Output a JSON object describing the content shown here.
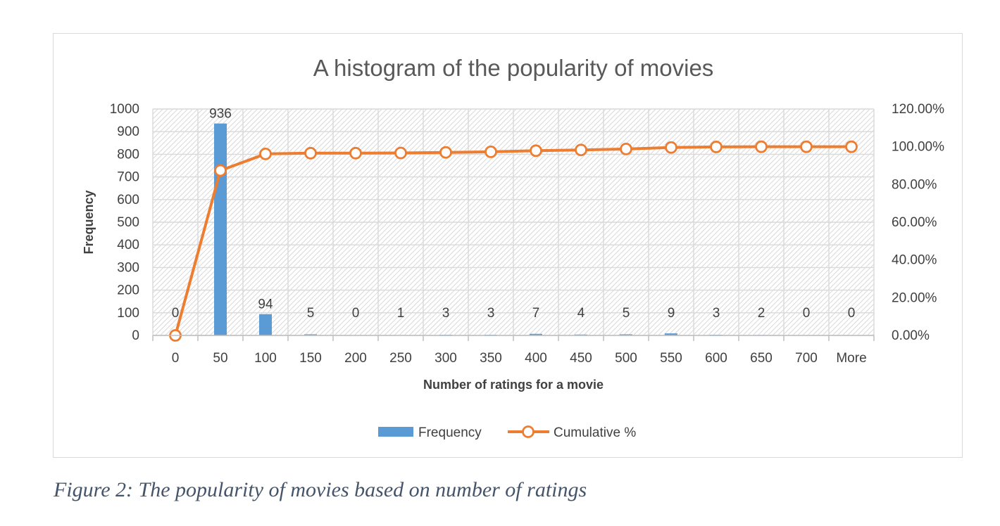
{
  "caption": "Figure 2: The popularity of movies based on number of ratings",
  "chart_data": {
    "type": "bar",
    "title": "A histogram of the popularity of movies",
    "xlabel": "Number of ratings for a movie",
    "ylabel": "Frequency",
    "categories": [
      "0",
      "50",
      "100",
      "150",
      "200",
      "250",
      "300",
      "350",
      "400",
      "450",
      "500",
      "550",
      "600",
      "650",
      "700",
      "More"
    ],
    "series": [
      {
        "name": "Frequency",
        "type": "bar",
        "axis": "left",
        "values": [
          0,
          936,
          94,
          5,
          0,
          1,
          3,
          3,
          7,
          4,
          5,
          9,
          3,
          2,
          0,
          0
        ],
        "data_labels": [
          "0",
          "936",
          "94",
          "5",
          "0",
          "1",
          "3",
          "3",
          "7",
          "4",
          "5",
          "9",
          "3",
          "2",
          "0",
          "0"
        ]
      },
      {
        "name": "Cumulative %",
        "type": "line",
        "axis": "right",
        "values": [
          0.0,
          87.4,
          96.2,
          96.6,
          96.6,
          96.7,
          97.0,
          97.3,
          97.9,
          98.3,
          98.8,
          99.6,
          99.9,
          100.0,
          100.0,
          100.0
        ]
      }
    ],
    "ylim": [
      0,
      1000
    ],
    "y_ticks": [
      "0",
      "100",
      "200",
      "300",
      "400",
      "500",
      "600",
      "700",
      "800",
      "900",
      "1000"
    ],
    "y2lim": [
      0,
      120
    ],
    "y2_ticks": [
      "0.00%",
      "20.00%",
      "40.00%",
      "60.00%",
      "80.00%",
      "100.00%",
      "120.00%"
    ],
    "grid": true,
    "plot_background": "hatched",
    "legend_position": "bottom",
    "colors": {
      "bar": "#5b9bd5",
      "line": "#ed7d31",
      "title": "#595959",
      "axis_text": "#404040",
      "grid": "#d9d9d9"
    }
  }
}
